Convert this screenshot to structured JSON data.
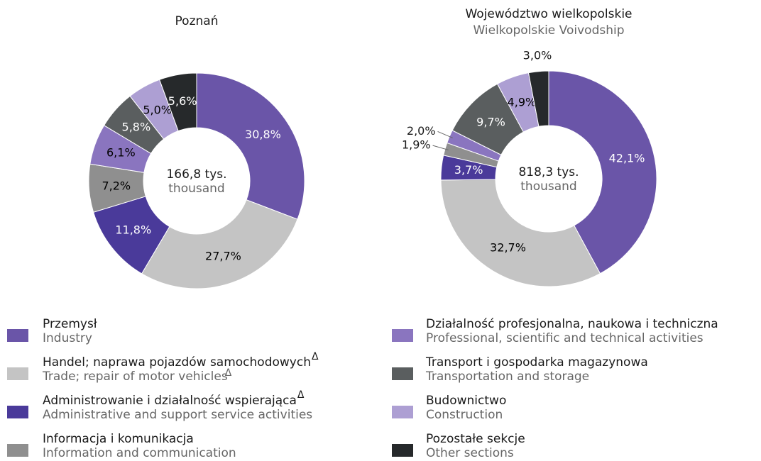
{
  "legend": [
    {
      "label": "Przemysł",
      "label_en": "Industry",
      "color": "#6a55a8",
      "text_color": "#ffffff"
    },
    {
      "label": "Handel; naprawa pojazdów samochodowych",
      "mark": "Δ",
      "label_en": "Trade; repair of motor vehicles",
      "mark_en": "Δ",
      "color": "#c4c4c4",
      "text_color": "#000000"
    },
    {
      "label": "Administrowanie i działalność wspierająca",
      "mark": "Δ",
      "label_en": "Administrative and support service activities",
      "color": "#4a3a9a",
      "text_color": "#ffffff"
    },
    {
      "label": "Informacja i komunikacja",
      "label_en": "Information and communication",
      "color": "#8f8f8f",
      "text_color": "#000000"
    },
    {
      "label": "Działalność profesjonalna, naukowa i techniczna",
      "label_en": "Professional, scientific and technical activities",
      "color": "#8a75bf",
      "text_color": "#000000"
    },
    {
      "label": "Transport i gospodarka magazynowa",
      "label_en": "Transportation and storage",
      "color": "#5a5e5f",
      "text_color": "#ffffff"
    },
    {
      "label": "Budownictwo",
      "label_en": "Construction",
      "color": "#ad9fd3",
      "text_color": "#000000"
    },
    {
      "label": "Pozostałe sekcje",
      "label_en": "Other sections",
      "color": "#26292b",
      "text_color": "#ffffff"
    }
  ],
  "chart_data": [
    {
      "type": "pie",
      "title": "Poznań",
      "center_label": "166,8 tys.",
      "center_sublabel": "thousand",
      "values": [
        30.8,
        27.7,
        11.8,
        7.2,
        6.1,
        5.8,
        5.0,
        5.6
      ],
      "value_labels": [
        "30,8%",
        "27,7%",
        "11,8%",
        "7,2%",
        "6,1%",
        "5,8%",
        "5,0%",
        "5,6%"
      ]
    },
    {
      "type": "pie",
      "title": "Województwo wielkopolskie",
      "subtitle": "Wielkopolskie Voivodship",
      "center_label": "818,3 tys.",
      "center_sublabel": "thousand",
      "values": [
        42.1,
        32.7,
        3.7,
        1.9,
        2.0,
        9.7,
        4.9,
        3.0
      ],
      "value_labels": [
        "42,1%",
        "32,7%",
        "3,7%",
        "1,9%",
        "2,0%",
        "9,7%",
        "4,9%",
        "3,0%"
      ]
    }
  ]
}
